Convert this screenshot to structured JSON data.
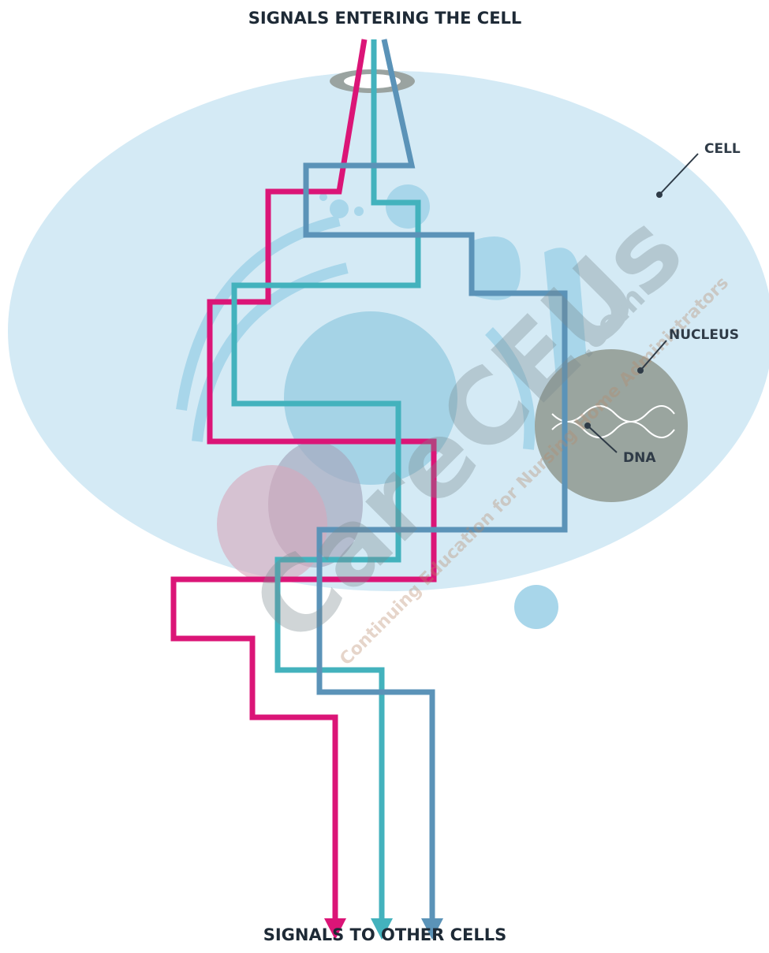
{
  "title": "SIGNALS ENTERING THE CELL",
  "footer": "SIGNALS TO OTHER CELLS",
  "labels": {
    "cell": "CELL",
    "nucleus": "NUCLEUS",
    "dna": "DNA"
  },
  "watermark": {
    "brand": "CareCEUs",
    "domain": ".com",
    "tagline": "Continuing Education for Nursing Home Administrators"
  }
}
